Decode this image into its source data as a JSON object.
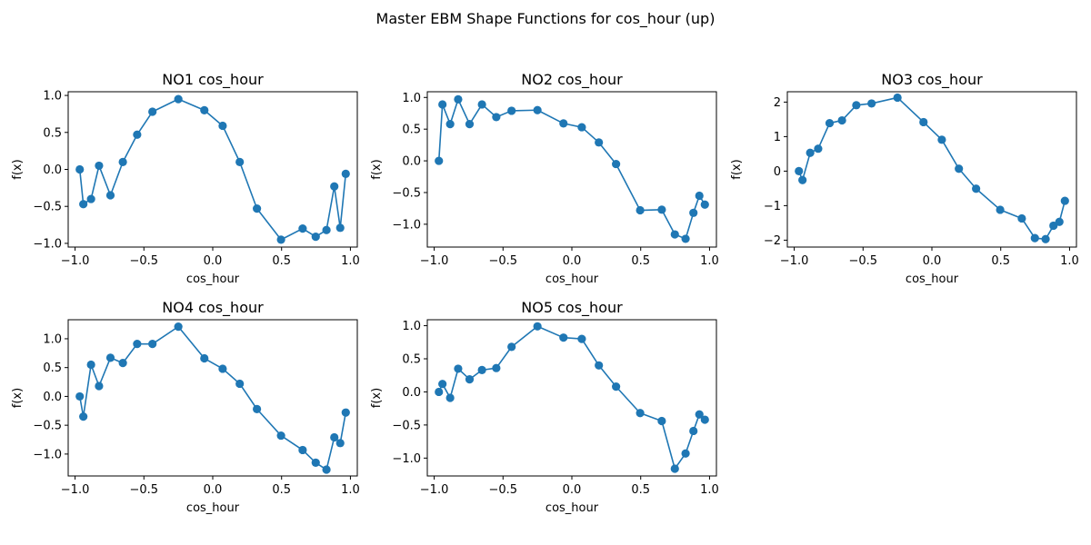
{
  "figure": {
    "suptitle": "Master EBM Shape Functions for cos_hour (up)",
    "series_color": "#1f77b4"
  },
  "chart_data": [
    {
      "type": "line",
      "title": "NO1 cos_hour",
      "xlabel": "cos_hour",
      "ylabel": "f(x)",
      "xlim": [
        -1.05,
        1.05
      ],
      "ylim": [
        -1.05,
        1.05
      ],
      "xticks": [
        -1.0,
        -0.5,
        0.0,
        0.5,
        1.0
      ],
      "xtick_labels": [
        "−1.0",
        "−0.5",
        "0.0",
        "0.5",
        "1.0"
      ],
      "yticks": [
        -1.0,
        -0.5,
        0.0,
        0.5,
        1.0
      ],
      "ytick_labels": [
        "−1.0",
        "−0.5",
        "0.0",
        "0.5",
        "1.0"
      ],
      "markers": true,
      "x": [
        -0.966,
        -0.94,
        -0.884,
        -0.826,
        -0.743,
        -0.653,
        -0.549,
        -0.438,
        -0.25,
        -0.061,
        0.072,
        0.196,
        0.321,
        0.496,
        0.653,
        0.748,
        0.826,
        0.883,
        0.926,
        0.966
      ],
      "y": [
        0.0,
        -0.47,
        -0.4,
        0.05,
        -0.35,
        0.1,
        0.47,
        0.78,
        0.95,
        0.8,
        0.59,
        0.1,
        -0.53,
        -0.95,
        -0.8,
        -0.91,
        -0.82,
        -0.23,
        -0.79,
        -0.06
      ]
    },
    {
      "type": "line",
      "title": "NO2 cos_hour",
      "xlabel": "cos_hour",
      "ylabel": "f(x)",
      "xlim": [
        -1.05,
        1.05
      ],
      "ylim": [
        -1.36,
        1.09
      ],
      "xticks": [
        -1.0,
        -0.5,
        0.0,
        0.5,
        1.0
      ],
      "xtick_labels": [
        "−1.0",
        "−0.5",
        "0.0",
        "0.5",
        "1.0"
      ],
      "yticks": [
        -1.0,
        -0.5,
        0.0,
        0.5,
        1.0
      ],
      "ytick_labels": [
        "−1.0",
        "−0.5",
        "0.0",
        "0.5",
        "1.0"
      ],
      "markers": true,
      "x": [
        -0.966,
        -0.94,
        -0.884,
        -0.826,
        -0.743,
        -0.653,
        -0.549,
        -0.438,
        -0.25,
        -0.061,
        0.072,
        0.196,
        0.321,
        0.496,
        0.653,
        0.748,
        0.826,
        0.883,
        0.926,
        0.966
      ],
      "y": [
        0.0,
        0.89,
        0.58,
        0.97,
        0.58,
        0.89,
        0.69,
        0.79,
        0.8,
        0.59,
        0.53,
        0.29,
        -0.05,
        -0.78,
        -0.77,
        -1.16,
        -1.23,
        -0.82,
        -0.55,
        -0.69
      ]
    },
    {
      "type": "line",
      "title": "NO3 cos_hour",
      "xlabel": "cos_hour",
      "ylabel": "f(x)",
      "xlim": [
        -1.05,
        1.05
      ],
      "ylim": [
        -2.2,
        2.3
      ],
      "xticks": [
        -1.0,
        -0.5,
        0.0,
        0.5,
        1.0
      ],
      "xtick_labels": [
        "−1.0",
        "−0.5",
        "0.0",
        "0.5",
        "1.0"
      ],
      "yticks": [
        -2,
        -1,
        0,
        1,
        2
      ],
      "ytick_labels": [
        "−2",
        "−1",
        "0",
        "1",
        "2"
      ],
      "markers": true,
      "x": [
        -0.966,
        -0.94,
        -0.884,
        -0.826,
        -0.743,
        -0.653,
        -0.549,
        -0.438,
        -0.25,
        -0.061,
        0.072,
        0.196,
        0.321,
        0.496,
        0.653,
        0.748,
        0.826,
        0.883,
        0.926,
        0.966
      ],
      "y": [
        0.0,
        -0.26,
        0.53,
        0.65,
        1.39,
        1.47,
        1.91,
        1.96,
        2.13,
        1.42,
        0.91,
        0.07,
        -0.51,
        -1.12,
        -1.37,
        -1.94,
        -1.97,
        -1.58,
        -1.47,
        -0.86
      ]
    },
    {
      "type": "line",
      "title": "NO4 cos_hour",
      "xlabel": "cos_hour",
      "ylabel": "f(x)",
      "xlim": [
        -1.05,
        1.05
      ],
      "ylim": [
        -1.38,
        1.33
      ],
      "xticks": [
        -1.0,
        -0.5,
        0.0,
        0.5,
        1.0
      ],
      "xtick_labels": [
        "−1.0",
        "−0.5",
        "0.0",
        "0.5",
        "1.0"
      ],
      "yticks": [
        -1.0,
        -0.5,
        0.0,
        0.5,
        1.0
      ],
      "ytick_labels": [
        "−1.0",
        "−0.5",
        "0.0",
        "0.5",
        "1.0"
      ],
      "markers": true,
      "x": [
        -0.966,
        -0.94,
        -0.884,
        -0.826,
        -0.743,
        -0.653,
        -0.549,
        -0.438,
        -0.25,
        -0.061,
        0.072,
        0.196,
        0.321,
        0.496,
        0.653,
        0.748,
        0.826,
        0.883,
        0.926,
        0.966
      ],
      "y": [
        0.0,
        -0.35,
        0.55,
        0.18,
        0.67,
        0.58,
        0.91,
        0.91,
        1.21,
        0.66,
        0.48,
        0.22,
        -0.22,
        -0.68,
        -0.93,
        -1.15,
        -1.27,
        -0.71,
        -0.81,
        -0.28
      ]
    },
    {
      "type": "line",
      "title": "NO5 cos_hour",
      "xlabel": "cos_hour",
      "ylabel": "f(x)",
      "xlim": [
        -1.05,
        1.05
      ],
      "ylim": [
        -1.27,
        1.09
      ],
      "xticks": [
        -1.0,
        -0.5,
        0.0,
        0.5,
        1.0
      ],
      "xtick_labels": [
        "−1.0",
        "−0.5",
        "0.0",
        "0.5",
        "1.0"
      ],
      "yticks": [
        -1.0,
        -0.5,
        0.0,
        0.5,
        1.0
      ],
      "ytick_labels": [
        "−1.0",
        "−0.5",
        "0.0",
        "0.5",
        "1.0"
      ],
      "markers": true,
      "x": [
        -0.966,
        -0.94,
        -0.884,
        -0.826,
        -0.743,
        -0.653,
        -0.549,
        -0.438,
        -0.25,
        -0.061,
        0.072,
        0.196,
        0.321,
        0.496,
        0.653,
        0.748,
        0.826,
        0.883,
        0.926,
        0.966
      ],
      "y": [
        0.0,
        0.12,
        -0.09,
        0.35,
        0.19,
        0.33,
        0.36,
        0.68,
        0.99,
        0.82,
        0.8,
        0.4,
        0.08,
        -0.32,
        -0.44,
        -1.16,
        -0.93,
        -0.59,
        -0.34,
        -0.42
      ]
    }
  ]
}
